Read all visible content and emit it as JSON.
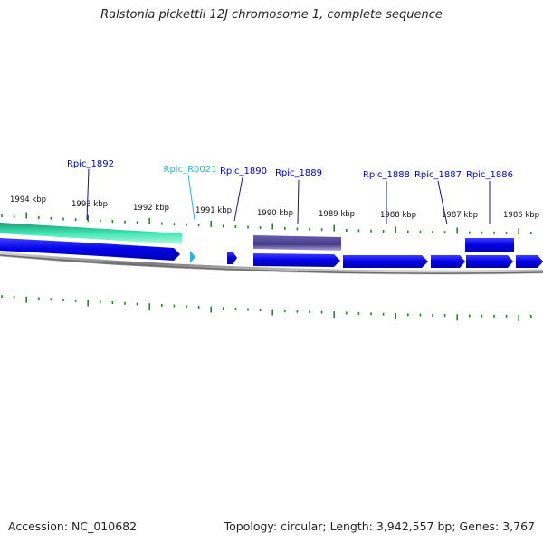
{
  "header": {
    "title": "Ralstonia pickettii 12J chromosome 1, complete sequence"
  },
  "footer": {
    "accession": "Accession: NC_010682",
    "summary": "Topology: circular; Length: 3,942,557 bp; Genes: 3,767"
  },
  "ruler": {
    "kbp_labels": [
      "1994 kbp",
      "1993 kbp",
      "1992 kbp",
      "1991 kbp",
      "1990 kbp",
      "1989 kbp",
      "1988 kbp",
      "1987 kbp",
      "1986 kbp"
    ]
  },
  "genes": [
    {
      "label": "Rpic_1892",
      "color": "#0000cc",
      "type": "CDS",
      "strand": "-"
    },
    {
      "label": "Rpic_R0021",
      "color": "#29b6d6",
      "type": "RNA",
      "strand": "+"
    },
    {
      "label": "Rpic_1890",
      "color": "#0000cc",
      "type": "CDS",
      "strand": "+"
    },
    {
      "label": "Rpic_1889",
      "color": "#0000cc",
      "type": "CDS",
      "strand": "+"
    },
    {
      "label": "Rpic_1888",
      "color": "#0000cc",
      "type": "CDS",
      "strand": "+"
    },
    {
      "label": "Rpic_1887",
      "color": "#0000cc",
      "type": "CDS",
      "strand": "+"
    },
    {
      "label": "Rpic_1886",
      "color": "#0000cc",
      "type": "CDS",
      "strand": "+"
    }
  ],
  "colors": {
    "gene": "#0000ff",
    "rna": "#29b6d6",
    "feature_teal": "#2fe0a8",
    "feature_purple": "#4a3f8c",
    "tick": "#1f8a1f",
    "backbone": "#888888"
  }
}
